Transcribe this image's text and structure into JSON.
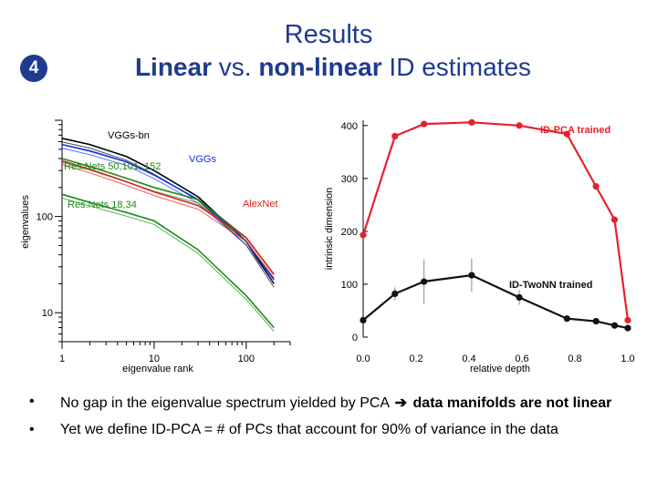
{
  "slide": {
    "title": "Results",
    "badge_number": "4",
    "subtitle": {
      "part1": "Linear",
      "part2": " vs. ",
      "part3": "non-linear",
      "part4": " ID estimates"
    },
    "accent_color": "#1f3b8f",
    "bullets": [
      {
        "marker": "•",
        "text_before": "No gap in the eigenvalue spectrum yielded by PCA ",
        "arrow": "➔",
        "text_bold": "data manifolds are not linear"
      },
      {
        "marker": "•",
        "text": "Yet we define ID-PCA = # of PCs that account for 90% of variance in the data"
      }
    ]
  },
  "chart_data": [
    {
      "type": "line",
      "scale": "log-log",
      "xlabel": "eigenvalue rank",
      "ylabel": "eigenvalues",
      "xlim": [
        1,
        300
      ],
      "ylim": [
        5,
        1000
      ],
      "x_tick_labels": [
        "1",
        "10",
        "100"
      ],
      "y_tick_labels": [
        "10",
        "100"
      ],
      "annotations": [
        "VGGs-bn",
        "VGGs",
        "Res.Nets 50,101, 152",
        "AlexNet",
        "Res.Nets 18,34"
      ],
      "series": [
        {
          "name": "VGGs-bn",
          "color": "#000000",
          "x": [
            1,
            2,
            5,
            10,
            30,
            100,
            200
          ],
          "y": [
            650,
            560,
            420,
            300,
            160,
            55,
            20
          ]
        },
        {
          "name": "VGGs",
          "color": "#1030e0",
          "x": [
            1,
            2,
            5,
            10,
            30,
            100,
            200
          ],
          "y": [
            560,
            480,
            370,
            270,
            150,
            55,
            22
          ]
        },
        {
          "name": "Res.Nets 50,101, 152",
          "color": "#1a8a1a",
          "x": [
            1,
            2,
            5,
            10,
            30,
            100,
            200
          ],
          "y": [
            400,
            330,
            250,
            200,
            150,
            60,
            25
          ]
        },
        {
          "name": "AlexNet",
          "color": "#e02020",
          "x": [
            1,
            2,
            5,
            10,
            30,
            100,
            200
          ],
          "y": [
            380,
            310,
            230,
            180,
            130,
            60,
            25
          ]
        },
        {
          "name": "Res.Nets 18,34",
          "color": "#1a8a1a",
          "x": [
            1,
            2,
            5,
            10,
            30,
            100,
            200
          ],
          "y": [
            170,
            140,
            110,
            90,
            45,
            15,
            7
          ]
        }
      ]
    },
    {
      "type": "line",
      "xlabel": "relative depth",
      "ylabel": "intrinsic dimension",
      "xlim": [
        0,
        1
      ],
      "ylim": [
        0,
        410
      ],
      "x_ticks": [
        "0.0",
        "0.2",
        "0.4",
        "0.6",
        "0.8",
        "1.0"
      ],
      "y_ticks": [
        "0",
        "100",
        "200",
        "300",
        "400"
      ],
      "series": [
        {
          "name": "ID-PCA trained",
          "color": "#e8202a",
          "x": [
            0.0,
            0.12,
            0.23,
            0.41,
            0.59,
            0.77,
            0.88,
            0.95,
            1.0
          ],
          "y": [
            193,
            380,
            403,
            406,
            400,
            384,
            285,
            222,
            32
          ]
        },
        {
          "name": "ID-TwoNN trained",
          "color": "#111111",
          "x": [
            0.0,
            0.12,
            0.23,
            0.41,
            0.59,
            0.77,
            0.88,
            0.95,
            1.0
          ],
          "y": [
            32,
            82,
            105,
            117,
            75,
            35,
            30,
            22,
            17
          ],
          "error": [
            0,
            12,
            42,
            32,
            14,
            0,
            0,
            0,
            0
          ]
        }
      ]
    }
  ]
}
